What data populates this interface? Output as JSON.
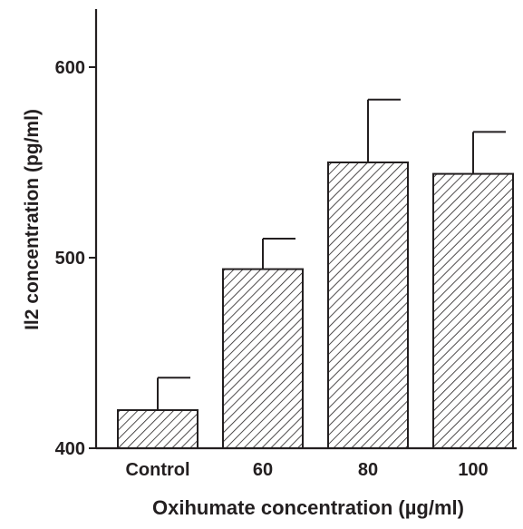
{
  "chart_data": {
    "type": "bar",
    "title": "",
    "xlabel": "Oxihumate concentration (µg/ml)",
    "ylabel": "Il2 concentration (pg/ml)",
    "categories": [
      "Control",
      "60",
      "80",
      "100"
    ],
    "values": [
      420,
      494,
      550,
      544
    ],
    "errors": [
      17,
      16,
      33,
      22
    ],
    "ylim": [
      400,
      630
    ],
    "yticks": [
      400,
      500,
      600
    ],
    "grid": false,
    "bar_fill": "diagonal-hatch",
    "colors": {
      "ink": "#231f20",
      "background": "#ffffff"
    }
  }
}
